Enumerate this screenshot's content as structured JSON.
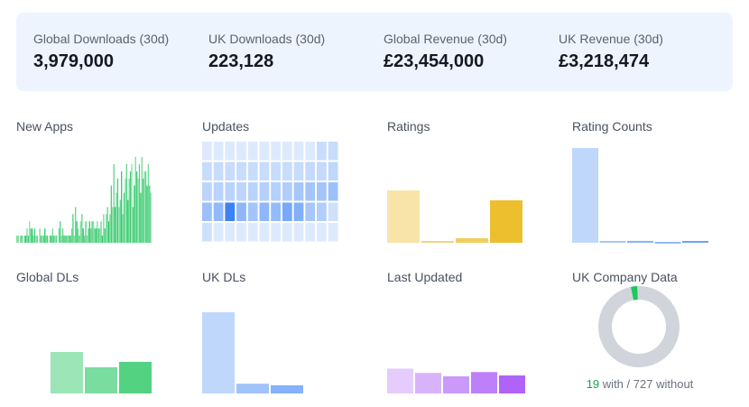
{
  "stats": [
    {
      "label": "Global Downloads (30d)",
      "value": "3,979,000"
    },
    {
      "label": "UK Downloads (30d)",
      "value": "223,128"
    },
    {
      "label": "Global Revenue (30d)",
      "value": "£23,454,000"
    },
    {
      "label": "UK Revenue (30d)",
      "value": "£3,218,474"
    }
  ],
  "tiles": {
    "new_apps": {
      "title": "New Apps"
    },
    "updates": {
      "title": "Updates"
    },
    "ratings": {
      "title": "Ratings"
    },
    "rating_counts": {
      "title": "Rating Counts"
    },
    "global_dls": {
      "title": "Global DLs"
    },
    "uk_dls": {
      "title": "UK DLs"
    },
    "last_updated": {
      "title": "Last Updated"
    },
    "uk_company_data": {
      "title": "UK Company Data",
      "with_count": "19",
      "with_label": "with /",
      "without_count": "727",
      "without_label": "without"
    }
  },
  "colors": {
    "green": "#22c55e",
    "blue": "#3b82f6",
    "gold": "#eab308",
    "purple": "#a855f7",
    "donut_gray": "#d1d5db"
  },
  "chart_data": [
    {
      "type": "bar",
      "title": "New Apps",
      "values": [
        1,
        1,
        0,
        1,
        1,
        0,
        1,
        1,
        2,
        1,
        3,
        2,
        2,
        1,
        2,
        1,
        1,
        0,
        2,
        1,
        1,
        1,
        2,
        1,
        1,
        0,
        1,
        1,
        2,
        1,
        1,
        1,
        0,
        2,
        3,
        1,
        2,
        1,
        1,
        1,
        1,
        1,
        1,
        2,
        4,
        1,
        5,
        3,
        2,
        1,
        3,
        4,
        2,
        1,
        3,
        1,
        2,
        3,
        2,
        3,
        3,
        2,
        2,
        3,
        2,
        2,
        3,
        1,
        4,
        2,
        4,
        5,
        3,
        4,
        8,
        5,
        11,
        5,
        7,
        9,
        5,
        6,
        10,
        4,
        7,
        9,
        11,
        6,
        9,
        10,
        11,
        5,
        8,
        12,
        10,
        9,
        11,
        7,
        12,
        9,
        10,
        10,
        8,
        11,
        8,
        7
      ],
      "ylim": [
        0,
        12
      ]
    },
    {
      "type": "heatmap",
      "title": "Updates",
      "rows": 5,
      "cols": 12,
      "values": [
        [
          0.1,
          0.1,
          0.1,
          0.1,
          0.1,
          0.1,
          0.1,
          0.1,
          0.1,
          0.1,
          0.22,
          0.22
        ],
        [
          0.22,
          0.22,
          0.22,
          0.22,
          0.22,
          0.22,
          0.22,
          0.22,
          0.22,
          0.24,
          0.24,
          0.26
        ],
        [
          0.28,
          0.3,
          0.3,
          0.28,
          0.3,
          0.32,
          0.32,
          0.34,
          0.4,
          0.42,
          0.42,
          0.46
        ],
        [
          0.46,
          0.52,
          1.0,
          0.54,
          0.42,
          0.54,
          0.5,
          0.66,
          0.6,
          0.4,
          0.34,
          0.18
        ],
        [
          0.18,
          0.1,
          0.1,
          0.1,
          0.1,
          0.1,
          0.1,
          0.1,
          0.1,
          0.1,
          0.1,
          0.1
        ]
      ]
    },
    {
      "type": "bar",
      "title": "Ratings",
      "values": [
        58,
        2,
        5,
        47
      ],
      "ylim": [
        0,
        100
      ]
    },
    {
      "type": "bar",
      "title": "Rating Counts",
      "values": [
        100,
        1,
        2,
        -1,
        1
      ],
      "ylim": [
        0,
        100
      ]
    },
    {
      "type": "bar",
      "title": "Global DLs",
      "values": [
        0,
        46,
        29,
        35
      ],
      "ylim": [
        0,
        100
      ]
    },
    {
      "type": "bar",
      "title": "UK DLs",
      "values": [
        100,
        12,
        10
      ],
      "ylim": [
        0,
        100
      ]
    },
    {
      "type": "bar",
      "title": "Last Updated",
      "values": [
        29,
        24,
        20,
        25,
        21
      ],
      "ylim": [
        0,
        100
      ]
    },
    {
      "type": "pie",
      "title": "UK Company Data",
      "labels": [
        "with",
        "without"
      ],
      "values": [
        19,
        727
      ]
    }
  ]
}
